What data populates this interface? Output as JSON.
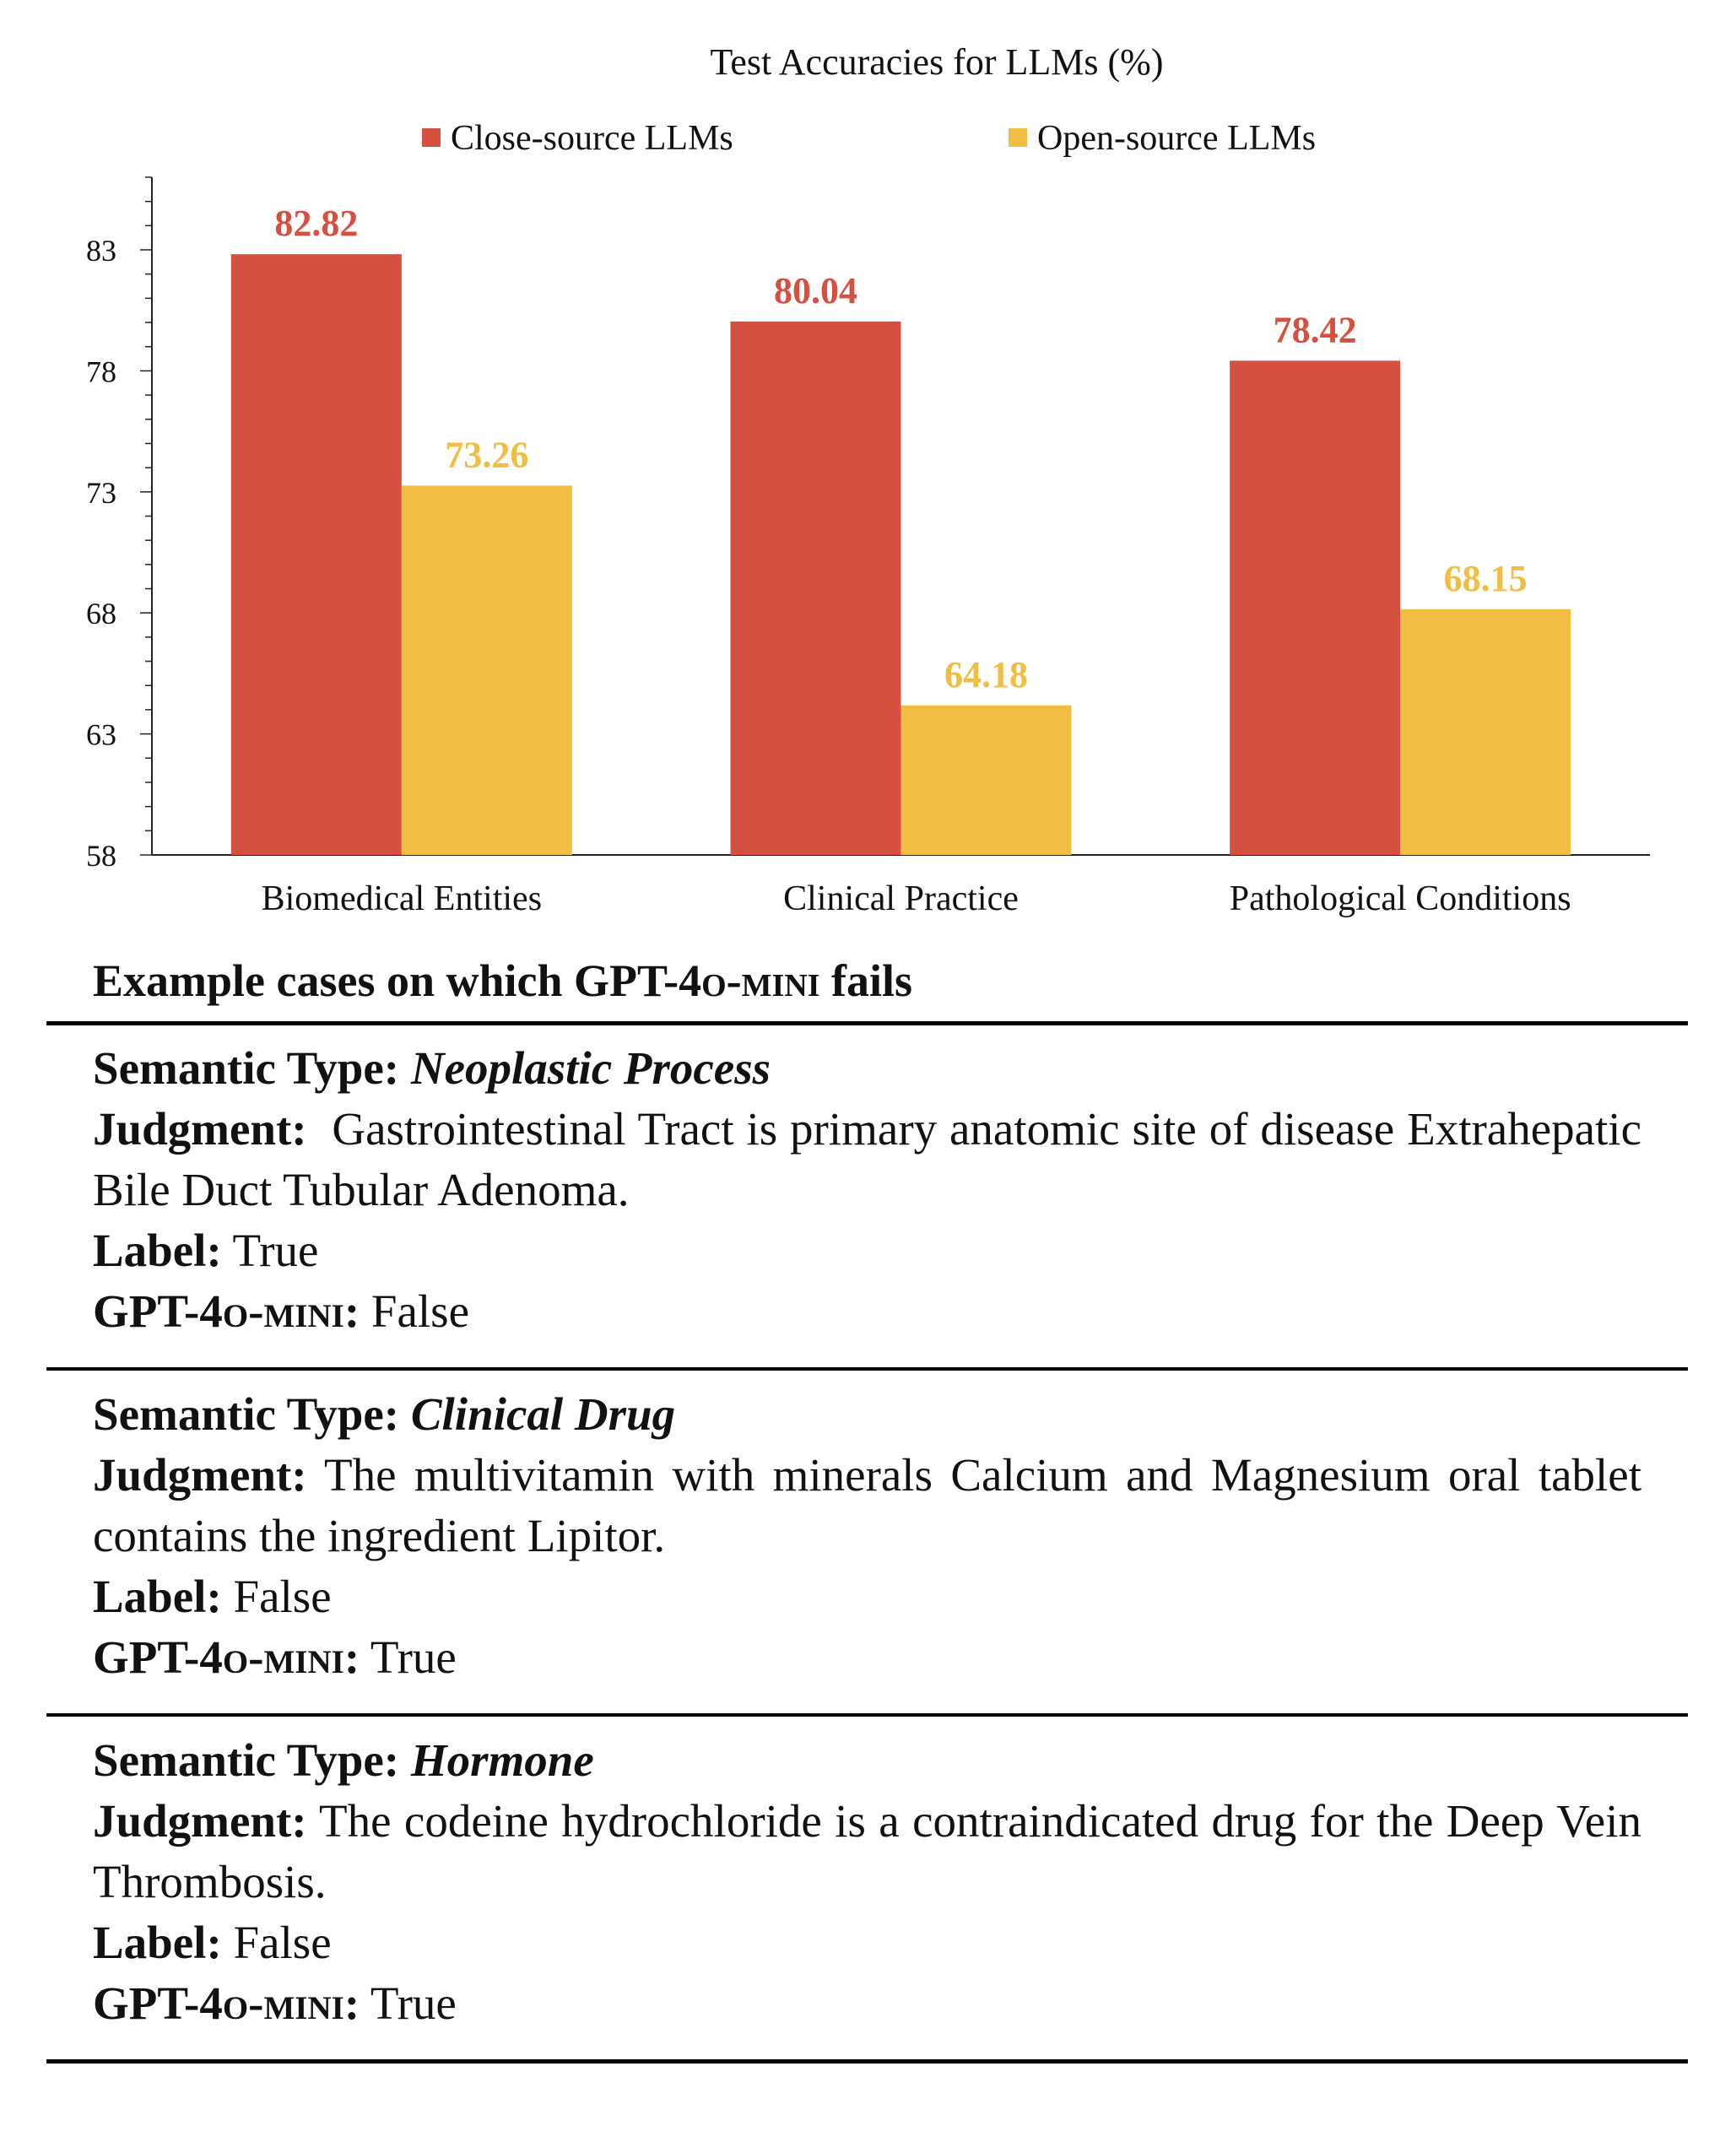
{
  "chart_data": {
    "type": "bar",
    "title": "Test Accuracies for LLMs (%)",
    "categories": [
      "Biomedical Entities",
      "Clinical Practice",
      "Pathological Conditions"
    ],
    "series": [
      {
        "name": "Close-source LLMs",
        "values": [
          82.82,
          80.04,
          78.42
        ],
        "color": "#d65040"
      },
      {
        "name": "Open-source LLMs",
        "values": [
          73.26,
          64.18,
          68.15
        ],
        "color": "#f0be42"
      }
    ],
    "ylim": [
      58,
      86
    ],
    "yticks": [
      58,
      63,
      68,
      73,
      78,
      83
    ],
    "legend": "top",
    "grid": false
  },
  "cases": {
    "heading": "Example cases on which GPT-4o-mini fails",
    "semantic_type_label": "Semantic Type:",
    "judgment_label": "Judgment:",
    "label_label": "Label:",
    "model_label": "GPT-4o-mini:",
    "items": [
      {
        "semantic_type": "Neoplastic Process",
        "judgment": "Gastrointestinal Tract is primary anatomic site of disease Extrahepatic Bile Duct Tubular Adenoma.",
        "label": "True",
        "prediction": "False"
      },
      {
        "semantic_type": "Clinical Drug",
        "judgment": "The multivitamin with minerals Calcium and Magnesium oral tablet contains the ingredient Lipitor.",
        "label": "False",
        "prediction": "True"
      },
      {
        "semantic_type": "Hormone",
        "judgment": "The codeine hydrochloride is a contraindicated drug for the Deep Vein Thrombosis.",
        "label": "False",
        "prediction": "True"
      }
    ]
  }
}
